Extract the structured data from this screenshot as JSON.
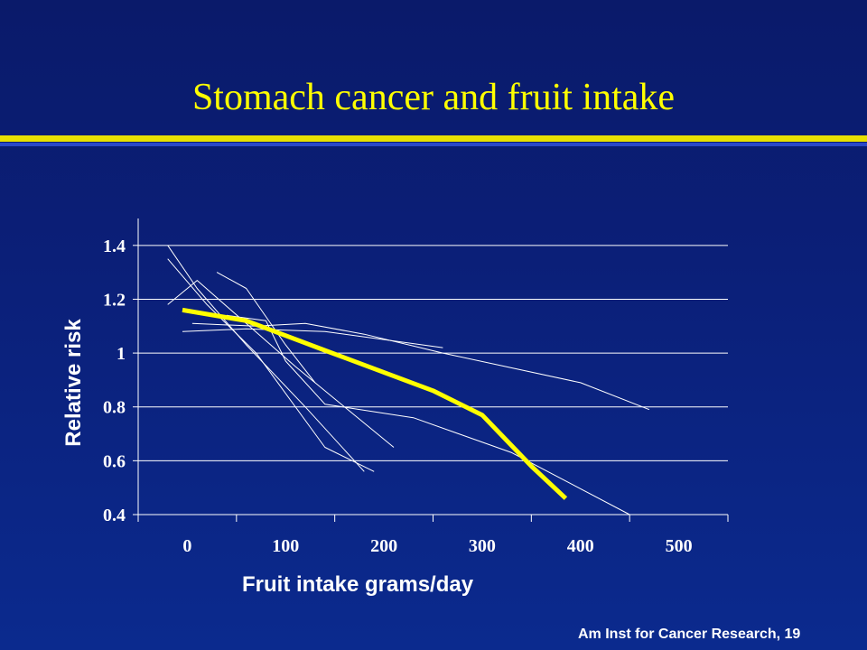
{
  "title": "Stomach cancer and fruit intake",
  "source": "Am Inst for Cancer Research, 19",
  "colors": {
    "title": "#ffff00",
    "pooled_line": "#ffff00",
    "study_lines": "#ffffff",
    "rule_yellow": "#e8e000",
    "rule_blue": "#2a48c8"
  },
  "chart_data": {
    "type": "line",
    "xlabel": "Fruit intake grams/day",
    "ylabel": "Relative risk",
    "xlim": [
      -50,
      550
    ],
    "ylim": [
      0.4,
      1.5
    ],
    "x_ticks": [
      0,
      100,
      200,
      300,
      400,
      500
    ],
    "x_tick_labels": [
      "0",
      "100",
      "200",
      "300",
      "400",
      "500"
    ],
    "y_ticks": [
      0.4,
      0.6,
      0.8,
      1.0,
      1.2,
      1.4
    ],
    "y_tick_labels": [
      "0.4",
      "0.6",
      "0.8",
      "1",
      "1.2",
      "1.4"
    ],
    "grid": "horizontal",
    "series": [
      {
        "x": [
          -20,
          10,
          60,
          120,
          180
        ],
        "y": [
          1.4,
          1.24,
          1.03,
          0.8,
          0.56
        ],
        "style": "thin"
      },
      {
        "x": [
          -20,
          20,
          70,
          140,
          190
        ],
        "y": [
          1.35,
          1.18,
          1.0,
          0.65,
          0.56
        ],
        "style": "thin"
      },
      {
        "x": [
          -20,
          10,
          60,
          110,
          160,
          210
        ],
        "y": [
          1.18,
          1.27,
          1.11,
          0.95,
          0.8,
          0.65
        ],
        "style": "thin"
      },
      {
        "x": [
          -5,
          60,
          140,
          260
        ],
        "y": [
          1.08,
          1.09,
          1.08,
          1.02
        ],
        "style": "thin"
      },
      {
        "x": [
          5,
          70,
          120,
          180,
          260,
          400,
          470
        ],
        "y": [
          1.11,
          1.1,
          1.11,
          1.07,
          1.0,
          0.89,
          0.79
        ],
        "style": "thin"
      },
      {
        "x": [
          30,
          60,
          100,
          130
        ],
        "y": [
          1.3,
          1.24,
          1.03,
          0.89
        ],
        "style": "thin"
      },
      {
        "x": [
          40,
          80,
          100,
          140,
          230,
          330,
          450
        ],
        "y": [
          1.14,
          1.12,
          0.97,
          0.81,
          0.76,
          0.63,
          0.4
        ],
        "style": "thin"
      },
      {
        "x": [
          -5,
          60,
          140,
          250,
          300,
          350,
          385
        ],
        "y": [
          1.16,
          1.12,
          1.01,
          0.86,
          0.77,
          0.58,
          0.46
        ],
        "style": "pooled"
      }
    ]
  }
}
